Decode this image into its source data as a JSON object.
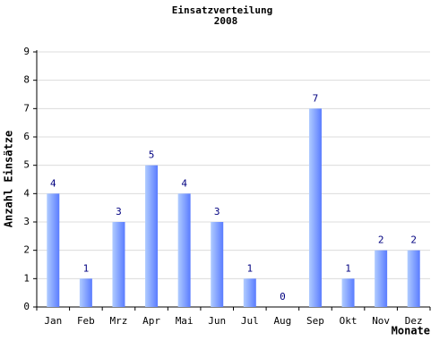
{
  "chart_data": {
    "type": "bar",
    "title": "Einsatzverteilung",
    "subtitle": "2008",
    "x_label": "Monate",
    "y_label": "Anzahl Einsätze",
    "categories": [
      "Jan",
      "Feb",
      "Mrz",
      "Apr",
      "Mai",
      "Jun",
      "Jul",
      "Aug",
      "Sep",
      "Okt",
      "Nov",
      "Dez"
    ],
    "values": [
      4,
      1,
      3,
      5,
      4,
      3,
      1,
      0,
      7,
      1,
      2,
      2
    ],
    "color": "#5a7cff",
    "ylim": [
      0,
      9
    ],
    "yticks": [
      0,
      1,
      2,
      3,
      4,
      5,
      6,
      7,
      8,
      9
    ],
    "grid": true
  }
}
